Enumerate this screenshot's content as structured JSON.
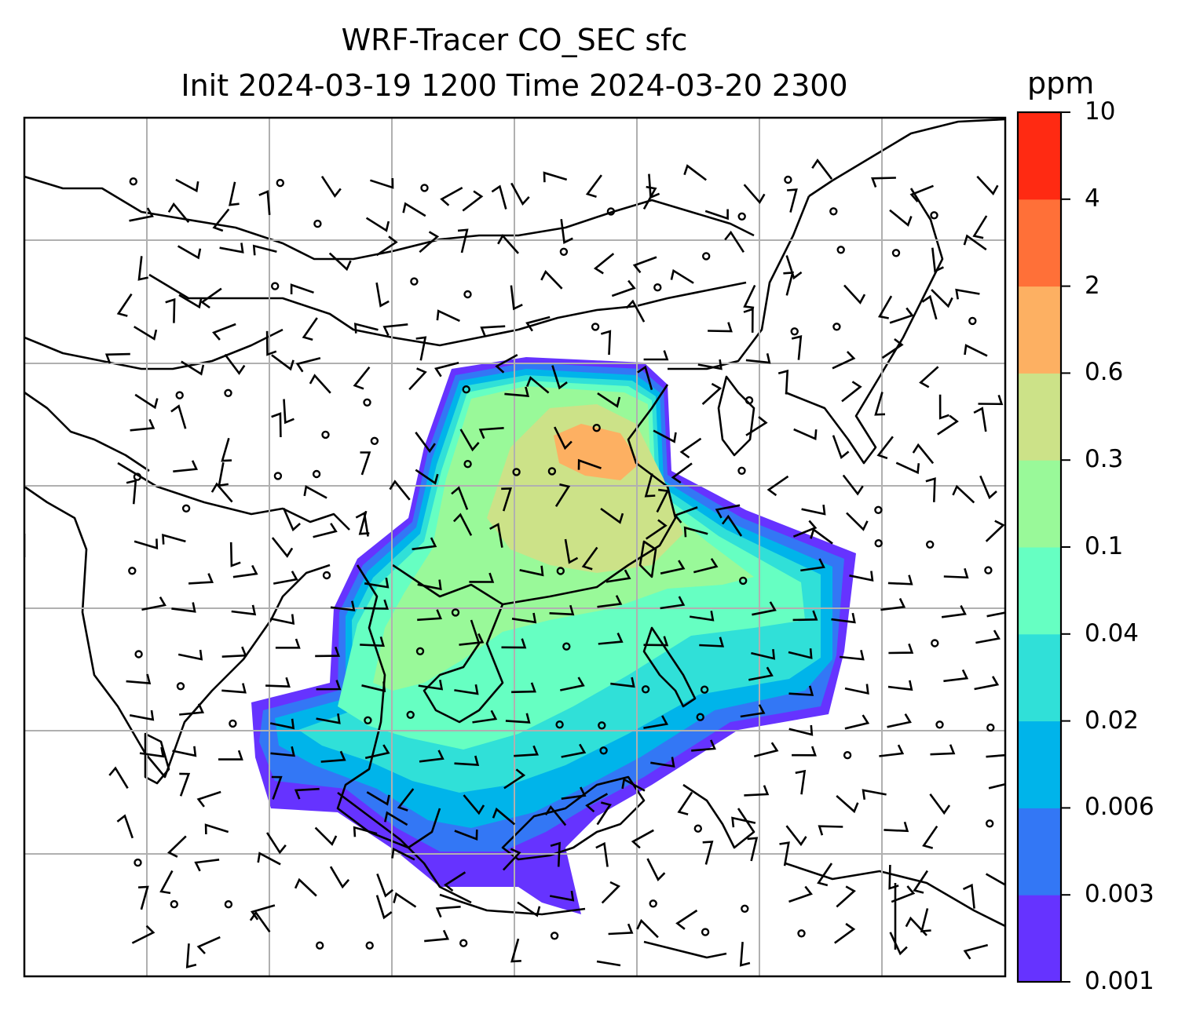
{
  "figure": {
    "title_line1": "WRF-Tracer CO_SEC sfc",
    "title_line2": "Init 2024-03-19 1200 Time 2024-03-20 2300",
    "variable": "CO_SEC",
    "level": "sfc",
    "init_time": "2024-03-19 1200",
    "valid_time": "2024-03-20 2300"
  },
  "colorbar": {
    "unit": "ppm",
    "levels": [
      "0.001",
      "0.003",
      "0.006",
      "0.02",
      "0.04",
      "0.1",
      "0.3",
      "0.6",
      "2",
      "4",
      "10"
    ],
    "colors": [
      "#6633ff",
      "#3377f5",
      "#00b4ea",
      "#30e0d8",
      "#66ffc2",
      "#99f999",
      "#cce288",
      "#fdb062",
      "#ff7038",
      "#ff2a12"
    ]
  },
  "map": {
    "gridlines": true,
    "coastline_color": "#000000",
    "gridline_color": "#b0b0b0",
    "overlay": "wind barbs"
  }
}
